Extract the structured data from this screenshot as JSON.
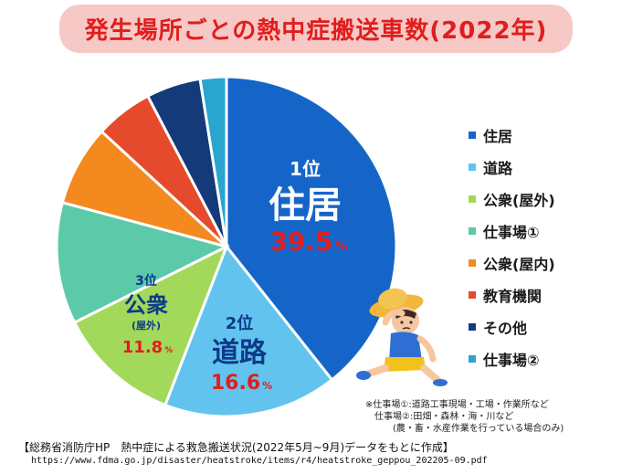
{
  "title": "発生場所ごとの熱中症搬送車数(2022年)",
  "chart_data": {
    "type": "pie",
    "title": "発生場所ごとの熱中症搬送車数(2022年)",
    "slices": [
      {
        "label": "住居",
        "value": 39.5,
        "color": "#1565c8"
      },
      {
        "label": "道路",
        "value": 16.6,
        "color": "#62c3ee"
      },
      {
        "label": "公衆(屋外)",
        "value": 11.8,
        "color": "#a3d95a"
      },
      {
        "label": "仕事場①",
        "value": 11.6,
        "color": "#5ccaa9"
      },
      {
        "label": "公衆(屋内)",
        "value": 7.7,
        "color": "#f3891f"
      },
      {
        "label": "教育機関",
        "value": 5.5,
        "color": "#e54a2c"
      },
      {
        "label": "その他",
        "value": 5.2,
        "color": "#143a7a"
      },
      {
        "label": "仕事場②",
        "value": 2.5,
        "color": "#2aa5cf"
      }
    ],
    "legend_position": "right"
  },
  "callouts": [
    {
      "rank": "1位",
      "name": "住居",
      "sub": "",
      "pct": "39.5",
      "unit": "%"
    },
    {
      "rank": "2位",
      "name": "道路",
      "sub": "",
      "pct": "16.6",
      "unit": "%"
    },
    {
      "rank": "3位",
      "name": "公衆",
      "sub": "(屋外)",
      "pct": "11.8",
      "unit": "%"
    }
  ],
  "footnote": "※仕事場①:道路工事現場・工場・作業所など\n　仕事場②:田畑・森林・海・川など\n　　　(農・畜・水産作業を行っている場合のみ)",
  "source": "【総務省消防庁HP　熱中症による救急搬送状況(2022年5月~9月)データをもとに作成】",
  "source_url": "https://www.fdma.go.jp/disaster/heatstroke/items/r4/heatstroke_geppou_202205-09.pdf",
  "colors": {
    "title_text": "#e11d1d",
    "title_bg": "#f6c9c6",
    "callout_blue": "#1565c8",
    "callout_red": "#e11d1d"
  }
}
